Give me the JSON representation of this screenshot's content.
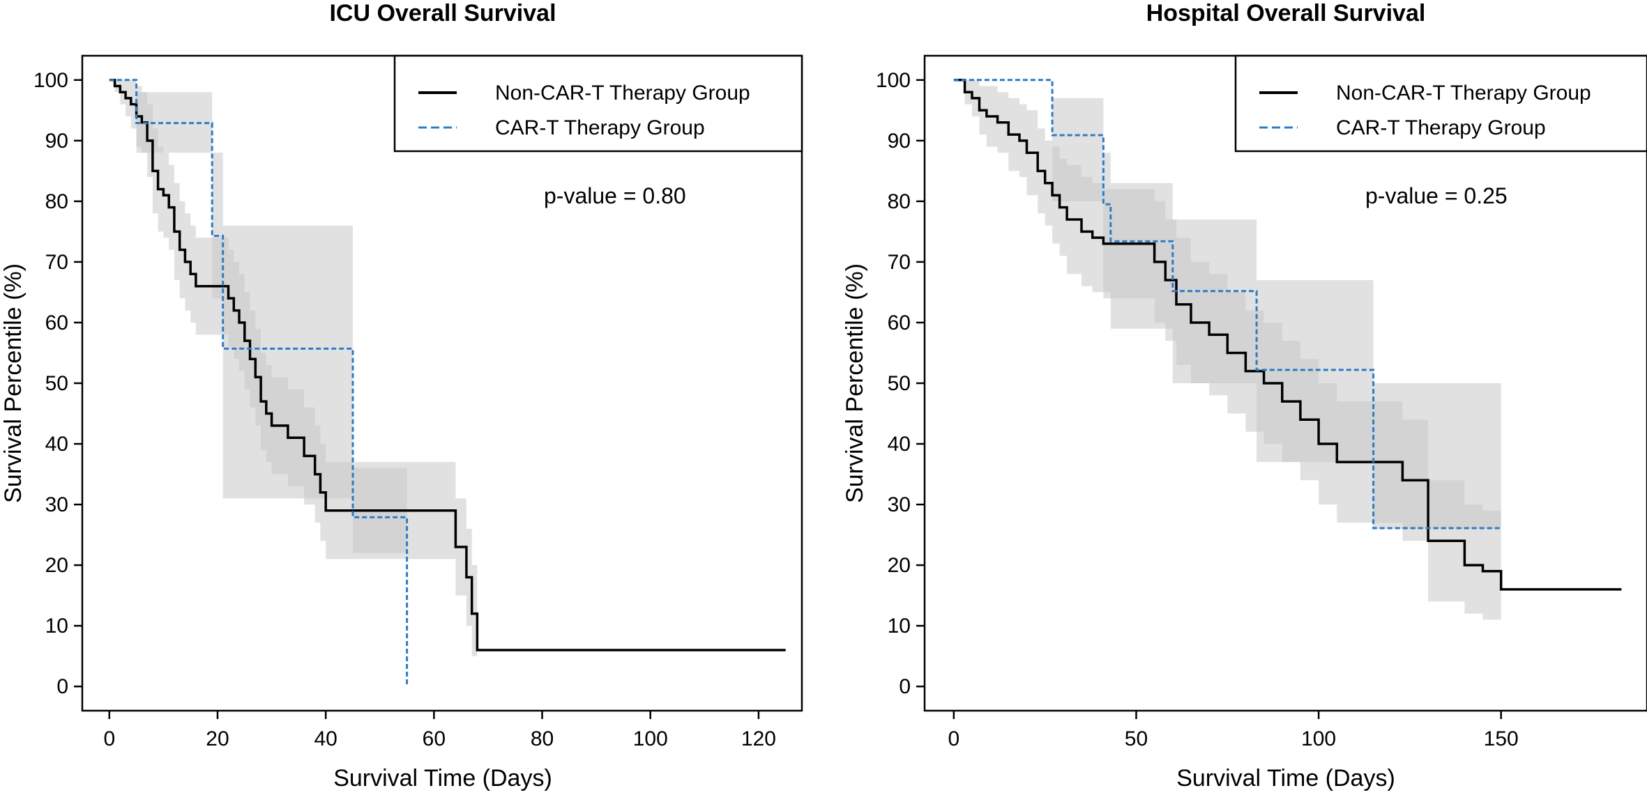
{
  "colors": {
    "non_cart": "#000000",
    "cart": "#2e7cc4",
    "band": "#c8c8c8"
  },
  "chart_data": [
    {
      "type": "line",
      "subtype": "kaplan-meier step",
      "title": "ICU Overall Survival",
      "xlabel": "Survival Time (Days)",
      "ylabel": "Survival Percentile (%)",
      "xlim": [
        -5,
        128
      ],
      "ylim": [
        -4,
        104
      ],
      "xticks": [
        0,
        20,
        40,
        60,
        80,
        100,
        120
      ],
      "yticks": [
        0,
        10,
        20,
        30,
        40,
        50,
        60,
        70,
        80,
        90,
        100
      ],
      "xtick_labels": [
        "0",
        "20",
        "40",
        "60",
        "80",
        "100",
        "120"
      ],
      "ytick_labels": [
        "0",
        "10",
        "20",
        "30",
        "40",
        "50",
        "60",
        "70",
        "80",
        "90",
        "100"
      ],
      "legend_position": "top-right",
      "annotation": "p-value = 0.80",
      "series": [
        {
          "name": "Non-CAR-T Therapy Group",
          "style": "solid",
          "x": [
            0,
            1,
            2,
            3,
            4,
            5,
            6,
            7,
            8,
            9,
            10,
            11,
            12,
            13,
            14,
            15,
            16,
            17,
            18,
            22,
            23,
            24,
            25,
            26,
            27,
            28,
            29,
            30,
            33,
            36,
            38,
            39,
            40,
            45,
            62,
            64,
            66,
            67,
            68,
            125
          ],
          "y": [
            100,
            99,
            98,
            97,
            96,
            94,
            93,
            90,
            85,
            82,
            81,
            79,
            75,
            72,
            70,
            68,
            66,
            66,
            66,
            64,
            62,
            60,
            57,
            54,
            51,
            47,
            45,
            43,
            41,
            38,
            35,
            32,
            29,
            29,
            29,
            23,
            18,
            12,
            6,
            6
          ],
          "ci_upper": [
            100,
            100,
            100,
            100,
            100,
            99,
            98,
            96,
            92,
            89,
            88,
            86,
            83,
            80,
            78,
            76,
            74,
            74,
            74,
            72,
            70,
            68,
            65,
            62,
            59,
            55,
            53,
            51,
            49,
            46,
            43,
            40,
            37,
            37,
            37,
            31,
            26,
            20,
            6,
            6
          ],
          "ci_lower": [
            100,
            98,
            96,
            94,
            92,
            89,
            88,
            84,
            78,
            75,
            74,
            72,
            67,
            64,
            62,
            60,
            58,
            58,
            58,
            56,
            54,
            52,
            49,
            46,
            43,
            39,
            37,
            35,
            33,
            30,
            27,
            24,
            21,
            21,
            21,
            15,
            10,
            5,
            6,
            6
          ]
        },
        {
          "name": "CAR-T Therapy Group",
          "style": "dashed",
          "x": [
            0,
            5,
            19,
            21,
            45,
            55,
            55
          ],
          "y": [
            100,
            92.9,
            74.3,
            55.7,
            27.9,
            27.9,
            0
          ],
          "ci_upper": [
            100,
            98,
            88,
            76,
            36,
            36,
            36
          ],
          "ci_lower": [
            100,
            88,
            64,
            31,
            22,
            22,
            22
          ]
        }
      ]
    },
    {
      "type": "line",
      "subtype": "kaplan-meier step",
      "title": "Hospital Overall Survival",
      "xlabel": "Survival Time (Days)",
      "ylabel": "Survival Percentile (%)",
      "xlim": [
        -8,
        190
      ],
      "ylim": [
        -4,
        104
      ],
      "xticks": [
        0,
        50,
        100,
        150
      ],
      "yticks": [
        0,
        10,
        20,
        30,
        40,
        50,
        60,
        70,
        80,
        90,
        100
      ],
      "xtick_labels": [
        "0",
        "50",
        "100",
        "150"
      ],
      "ytick_labels": [
        "0",
        "10",
        "20",
        "30",
        "40",
        "50",
        "60",
        "70",
        "80",
        "90",
        "100"
      ],
      "legend_position": "top-right",
      "annotation": "p-value = 0.25",
      "series": [
        {
          "name": "Non-CAR-T Therapy Group",
          "style": "solid",
          "x": [
            0,
            3,
            5,
            7,
            9,
            12,
            15,
            18,
            20,
            23,
            25,
            27,
            29,
            31,
            35,
            38,
            41,
            50,
            55,
            58,
            61,
            65,
            70,
            75,
            80,
            85,
            90,
            95,
            100,
            105,
            115,
            123,
            130,
            140,
            145,
            150,
            183
          ],
          "y": [
            100,
            98,
            97,
            95,
            94,
            93,
            91,
            90,
            88,
            85,
            83,
            81,
            79,
            77,
            75,
            74,
            73,
            73,
            70,
            67,
            63,
            60,
            58,
            55,
            52,
            50,
            47,
            44,
            40,
            37,
            37,
            34,
            24,
            20,
            19,
            16,
            16
          ],
          "ci_upper": [
            100,
            100,
            100,
            99,
            99,
            98,
            97,
            96,
            95,
            92,
            90,
            89,
            87,
            86,
            84,
            83,
            82,
            82,
            80,
            77,
            74,
            70,
            68,
            65,
            62,
            60,
            57,
            54,
            50,
            47,
            47,
            44,
            34,
            30,
            29,
            16,
            16
          ],
          "ci_lower": [
            100,
            96,
            94,
            91,
            89,
            88,
            85,
            84,
            81,
            78,
            76,
            73,
            71,
            68,
            66,
            65,
            64,
            64,
            60,
            57,
            53,
            50,
            48,
            45,
            42,
            40,
            37,
            34,
            30,
            27,
            27,
            24,
            14,
            12,
            11,
            16,
            16
          ]
        },
        {
          "name": "CAR-T Therapy Group",
          "style": "dashed",
          "x": [
            0,
            27,
            41,
            43,
            60,
            83,
            115,
            150
          ],
          "y": [
            100,
            90.9,
            79.5,
            73.4,
            65.2,
            52.2,
            26.1,
            26.1
          ],
          "ci_upper": [
            100,
            97,
            88,
            83,
            77,
            67,
            50,
            50
          ],
          "ci_lower": [
            100,
            80,
            65,
            59,
            50,
            37,
            26,
            26
          ]
        }
      ]
    }
  ]
}
